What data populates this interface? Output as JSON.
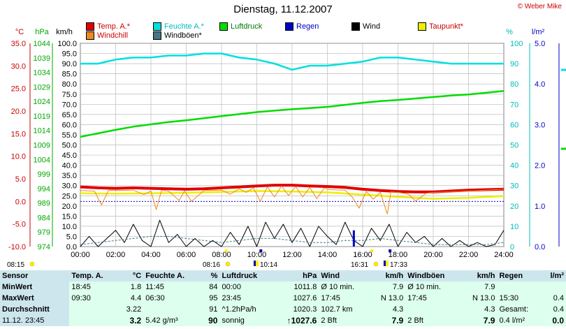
{
  "title": "Dienstag, 11.12.2007",
  "copyright": "© Weber Mike",
  "legend": [
    {
      "label": "Temp. A.*",
      "color": "#e00000"
    },
    {
      "label": "Feuchte A.*",
      "color": "#00e0e0"
    },
    {
      "label": "Luftdruck",
      "color": "#00dd00"
    },
    {
      "label": "Regen",
      "color": "#0000cc"
    },
    {
      "label": "Wind",
      "color": "#000000"
    },
    {
      "label": "Taupunkt*",
      "color": "#eeee00"
    },
    {
      "label": "Windchill",
      "color": "#ee8822"
    },
    {
      "label": "Windböen*",
      "color": "#447788"
    }
  ],
  "axes": {
    "temp_unit": "°C",
    "pressure_unit": "hPa",
    "wind_unit": "km/h",
    "humidity_unit": "%",
    "rain_unit": "l/m²",
    "temp_ticks": [
      "35.0",
      "30.0",
      "25.0",
      "20.0",
      "15.0",
      "10.0",
      "5.0",
      "0.0",
      "-5.0",
      "-10.0"
    ],
    "pressure_ticks": [
      "1044",
      "1039",
      "1034",
      "1029",
      "1024",
      "1019",
      "1014",
      "1009",
      "1004",
      "999",
      "994",
      "989",
      "984",
      "979",
      "974"
    ],
    "wind_ticks": [
      "100.0",
      "95.0",
      "90.0",
      "85.0",
      "80.0",
      "75.0",
      "70.0",
      "65.0",
      "60.0",
      "55.0",
      "50.0",
      "45.0",
      "40.0",
      "35.0",
      "30.0",
      "25.0",
      "20.0",
      "15.0",
      "10.0",
      "5.0",
      "0.0"
    ],
    "humidity_ticks": [
      "100",
      "90",
      "80",
      "70",
      "60",
      "50",
      "40",
      "30",
      "20",
      "10",
      "0"
    ],
    "rain_ticks": [
      "5.0",
      "4.0",
      "3.0",
      "2.0",
      "1.0",
      "0.0"
    ],
    "time_ticks": [
      "00:00",
      "02:00",
      "04:00",
      "06:00",
      "08:00",
      "10:00",
      "12:00",
      "14:00",
      "16:00",
      "18:00",
      "20:00",
      "22:00",
      "24:00"
    ]
  },
  "sun_events": [
    {
      "label": "08:15",
      "type": "sunrise-left"
    },
    {
      "label": "08:16",
      "type": "sunrise"
    },
    {
      "label": "10:14",
      "type": "moonrise"
    },
    {
      "label": "16:31",
      "type": "sunset"
    },
    {
      "label": "17:33",
      "type": "moonset"
    }
  ],
  "chart_data": {
    "type": "line",
    "title": "Dienstag, 11.12.2007",
    "x_unit": "time of day (hours)",
    "xlim": [
      0,
      24
    ],
    "series": [
      {
        "name": "Temp. A.*",
        "axis": "temp °C",
        "color": "#e00000",
        "x": [
          0,
          1,
          2,
          3,
          4,
          5,
          6,
          7,
          8,
          9,
          10,
          11,
          12,
          13,
          14,
          15,
          16,
          17,
          18,
          19,
          20,
          21,
          22,
          23,
          24
        ],
        "y": [
          3.2,
          3.0,
          2.9,
          3.0,
          2.9,
          2.8,
          2.7,
          2.8,
          3.0,
          3.2,
          3.4,
          3.6,
          3.6,
          3.4,
          3.3,
          3.1,
          2.7,
          2.4,
          2.2,
          2.1,
          2.1,
          2.3,
          2.5,
          2.6,
          2.7
        ]
      },
      {
        "name": "Feuchte A.*",
        "axis": "humidity %",
        "color": "#00e0e0",
        "x": [
          0,
          1,
          2,
          3,
          4,
          5,
          6,
          7,
          8,
          9,
          10,
          11,
          12,
          13,
          14,
          15,
          16,
          17,
          18,
          19,
          20,
          21,
          22,
          23,
          24
        ],
        "y": [
          90,
          90,
          92,
          93,
          93,
          94,
          94,
          95,
          95,
          93,
          92,
          90,
          87,
          89,
          89,
          90,
          91,
          93,
          93,
          92,
          91,
          90,
          90,
          90,
          90
        ]
      },
      {
        "name": "Luftdruck",
        "axis": "pressure hPa",
        "color": "#00dd00",
        "x": [
          0,
          1,
          2,
          3,
          4,
          5,
          6,
          7,
          8,
          9,
          10,
          11,
          12,
          13,
          14,
          15,
          16,
          17,
          18,
          19,
          20,
          21,
          22,
          23,
          24
        ],
        "y": [
          1011.8,
          1013.0,
          1014.2,
          1015.3,
          1016.1,
          1016.9,
          1017.5,
          1018.2,
          1018.9,
          1019.6,
          1020.3,
          1020.8,
          1021.3,
          1021.7,
          1022.1,
          1022.8,
          1023.5,
          1024.1,
          1024.5,
          1025.0,
          1025.5,
          1026.0,
          1026.4,
          1027.0,
          1027.6
        ]
      },
      {
        "name": "Taupunkt*",
        "axis": "temp °C",
        "color": "#eeee00",
        "x": [
          0,
          2,
          4,
          6,
          8,
          10,
          12,
          14,
          16,
          18,
          20,
          22,
          24
        ],
        "y": [
          1.8,
          1.7,
          1.8,
          1.9,
          2.1,
          2.3,
          2.2,
          2.0,
          1.5,
          1.0,
          0.6,
          0.8,
          1.2
        ]
      },
      {
        "name": "Windchill",
        "axis": "temp °C",
        "color": "#ee8822",
        "x": [
          0,
          0.8,
          1.2,
          1.6,
          2,
          3,
          3.6,
          4,
          4.3,
          4.6,
          5,
          5.6,
          5.9,
          6.3,
          7,
          8,
          8.5,
          9,
          9.4,
          9.8,
          10.2,
          10.6,
          11,
          11.4,
          11.8,
          12.2,
          12.6,
          13,
          13.4,
          13.8,
          14.2,
          15,
          15.4,
          15.8,
          16.2,
          16.6,
          17,
          17.4,
          17.6,
          18,
          18.6,
          19,
          19.6,
          20,
          21,
          22,
          23,
          24
        ],
        "y": [
          2.4,
          2.3,
          -0.8,
          2.5,
          2.4,
          2.5,
          1.5,
          2.3,
          -1.8,
          2.4,
          2.3,
          0.2,
          2.3,
          0.0,
          2.4,
          2.5,
          1.6,
          2.8,
          2.0,
          3.0,
          0.0,
          3.2,
          1.0,
          3.4,
          1.3,
          3.3,
          1.0,
          3.1,
          0.6,
          2.9,
          2.6,
          2.5,
          1.0,
          -1.5,
          2.2,
          0.5,
          2.0,
          -2.8,
          2.1,
          2.0,
          1.6,
          0.1,
          1.8,
          2.0,
          2.1,
          2.3,
          2.5,
          2.7
        ]
      },
      {
        "name": "Wind",
        "axis": "wind km/h",
        "color": "#000000",
        "x": [
          0,
          0.5,
          1,
          1.5,
          2,
          2.5,
          3,
          3.5,
          4,
          4.5,
          5,
          5.5,
          6,
          6.5,
          7,
          7.5,
          8,
          8.5,
          9,
          9.5,
          10,
          10.5,
          11,
          11.5,
          12,
          12.5,
          13,
          13.5,
          14,
          14.5,
          15,
          15.5,
          16,
          16.5,
          17,
          17.5,
          18,
          18.5,
          19,
          19.5,
          20,
          20.5,
          21,
          21.5,
          22,
          22.5,
          23,
          23.5,
          24
        ],
        "y": [
          0,
          5,
          0,
          4,
          8,
          2,
          11,
          3,
          0,
          13,
          2,
          6,
          0,
          4,
          0,
          3,
          0,
          7,
          1,
          10,
          0,
          12,
          4,
          11,
          2,
          9,
          0,
          10,
          5,
          1,
          12,
          3,
          0,
          9,
          3,
          11,
          0,
          7,
          2,
          5,
          0,
          4,
          0,
          3,
          0,
          2,
          0,
          1,
          8
        ]
      },
      {
        "name": "Windböen*",
        "axis": "wind km/h",
        "color": "#447788",
        "x": [
          0,
          1,
          2,
          3,
          4,
          5,
          6,
          7,
          8,
          9,
          10,
          11,
          12,
          13,
          14,
          15,
          16,
          17,
          18,
          19,
          20,
          21,
          22,
          23,
          24
        ],
        "y": [
          1,
          2,
          3,
          4,
          5,
          5,
          4,
          3,
          2,
          3,
          4,
          4,
          3,
          2,
          2,
          3,
          3,
          4,
          3,
          2,
          1,
          1,
          1,
          1,
          2
        ]
      },
      {
        "name": "Regen",
        "axis": "rain l/m²",
        "color": "#0000cc",
        "x": [
          15.5
        ],
        "y": [
          0.4
        ]
      }
    ],
    "ylims": {
      "temp": [
        -10,
        35
      ],
      "pressure": [
        974,
        1044
      ],
      "wind": [
        0,
        100
      ],
      "humidity": [
        0,
        100
      ],
      "rain": [
        0,
        5
      ]
    },
    "grid": true,
    "legend_position": "top"
  },
  "stats": {
    "headers": [
      "Sensor",
      "Temp. A.",
      "°C",
      "Feuchte A.",
      "%",
      "Luftdruck",
      "hPa",
      "Wind",
      "km/h",
      "Windböen",
      "km/h",
      "Regen",
      "l/m²"
    ],
    "rows": [
      {
        "label": "MinWert",
        "cells": [
          "18:45",
          "1.8",
          "11:45",
          "84",
          "00:00",
          "1011.8",
          "Ø 10 min.",
          "7.9",
          "Ø 10 min.",
          "7.9",
          "",
          ""
        ]
      },
      {
        "label": "MaxWert",
        "cells": [
          "09:30",
          "4.4",
          "06:30",
          "95",
          "23:45",
          "1027.6",
          "17:45",
          "N 13.0",
          "17:45",
          "N 13.0",
          "15:30",
          "0.4"
        ]
      },
      {
        "label": "Durchschnitt",
        "cells": [
          "",
          "3.22",
          "",
          "91",
          "^1.2hPa/h",
          "1020.3",
          "102.7 km",
          "4.3",
          "",
          "4.3",
          "Gesamt:",
          "0.4"
        ]
      },
      {
        "label": "11.12. 23:45",
        "cells": [
          "",
          "3.2",
          "5.42 g/m³",
          "90",
          "sonnig",
          "↑1027.6",
          "2 Bft",
          "7.9",
          "2 Bft",
          "7.9",
          "0.4 l/m²",
          "0.0"
        ]
      }
    ]
  }
}
